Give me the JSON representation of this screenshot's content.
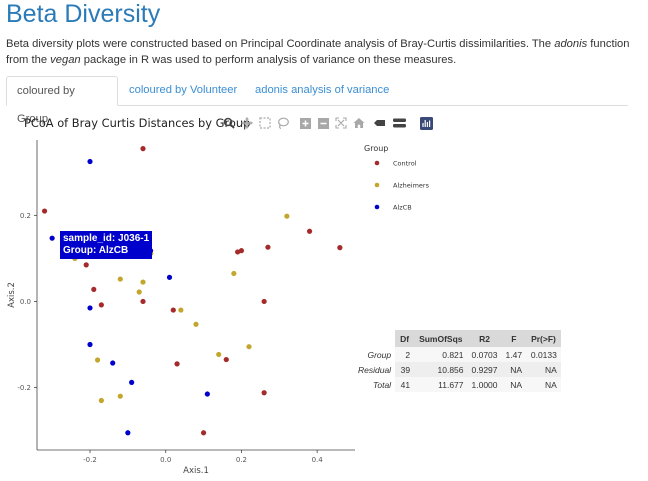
{
  "page": {
    "title": "Beta Diversity",
    "desc_parts": [
      "Beta diversity plots were constructed based on Principal Coordinate analysis of Bray-Curtis dissimilarities. The ",
      "adonis",
      " function from the ",
      "vegan",
      " package in R was used to perform analysis of variance on these measures."
    ]
  },
  "tabs": [
    {
      "label": "coloured by Group",
      "active": true
    },
    {
      "label": "coloured by Volunteer",
      "active": false
    },
    {
      "label": "adonis analysis of variance",
      "active": false
    }
  ],
  "plot": {
    "title": "PCoA of Bray Curtis Distances by Group",
    "modebar_icons": [
      "zoom-icon",
      "pan-icon",
      "box-select-icon",
      "lasso-select-icon",
      "zoom-in-icon",
      "zoom-out-icon",
      "autoscale-icon",
      "reset-axes-icon",
      "spike-lines-icon",
      "compare-hover-icon",
      "closest-hover-icon",
      "plotly-logo-icon"
    ],
    "tooltip": {
      "line1": "sample_id: J036-1",
      "line2": "Group: AlzCB"
    }
  },
  "chart_data": {
    "type": "scatter",
    "title": "PCoA of Bray Curtis Distances by Group",
    "xlabel": "Axis.1",
    "ylabel": "Axis.2",
    "xlim": [
      -0.34,
      0.5
    ],
    "ylim": [
      -0.345,
      0.375
    ],
    "xticks": [
      -0.2,
      0.0,
      0.2,
      0.4
    ],
    "yticks": [
      -0.2,
      0.0,
      0.2
    ],
    "xtick_labels": [
      "-0.2",
      "0.0",
      "0.2",
      "0.4"
    ],
    "ytick_labels": [
      "-0.2",
      "0.0",
      "0.2"
    ],
    "legend_title": "Group",
    "legend_position": "right",
    "grid": false,
    "series": [
      {
        "name": "Control",
        "color": "#a52a2a",
        "points": [
          [
            -0.06,
            0.355
          ],
          [
            -0.32,
            0.21
          ],
          [
            -0.21,
            0.085
          ],
          [
            -0.19,
            0.028
          ],
          [
            -0.17,
            -0.008
          ],
          [
            -0.06,
            0.0
          ],
          [
            -0.04,
            0.112
          ],
          [
            0.02,
            -0.02
          ],
          [
            0.03,
            -0.145
          ],
          [
            0.1,
            -0.305
          ],
          [
            0.16,
            -0.135
          ],
          [
            0.19,
            0.115
          ],
          [
            0.2,
            0.118
          ],
          [
            0.26,
            0.0
          ],
          [
            0.27,
            0.126
          ],
          [
            0.26,
            -0.212
          ],
          [
            0.38,
            0.163
          ],
          [
            0.46,
            0.125
          ]
        ]
      },
      {
        "name": "Alzheimers",
        "color": "#c3a62c",
        "points": [
          [
            -0.24,
            0.1
          ],
          [
            -0.12,
            0.052
          ],
          [
            -0.07,
            0.022
          ],
          [
            -0.06,
            0.045
          ],
          [
            -0.04,
            0.112
          ],
          [
            0.04,
            -0.02
          ],
          [
            0.08,
            -0.053
          ],
          [
            -0.18,
            -0.136
          ],
          [
            -0.17,
            -0.23
          ],
          [
            -0.12,
            -0.22
          ],
          [
            0.14,
            -0.123
          ],
          [
            0.18,
            0.065
          ],
          [
            0.22,
            -0.105
          ],
          [
            0.32,
            0.198
          ]
        ]
      },
      {
        "name": "AlzCB",
        "color": "#0000cc",
        "points": [
          [
            -0.2,
            0.325
          ],
          [
            -0.3,
            0.147
          ],
          [
            -0.2,
            -0.015
          ],
          [
            -0.2,
            -0.1
          ],
          [
            -0.14,
            -0.143
          ],
          [
            -0.09,
            -0.188
          ],
          [
            -0.1,
            -0.305
          ],
          [
            -0.04,
            0.118
          ],
          [
            0.01,
            0.056
          ],
          [
            0.11,
            -0.215
          ]
        ]
      }
    ]
  },
  "adonis_table": {
    "headers": [
      "Df",
      "SumOfSqs",
      "R2",
      "F",
      "Pr(>F)"
    ],
    "rows": [
      {
        "name": "Group",
        "values": [
          "2",
          "0.821",
          "0.0703",
          "1.47",
          "0.0133"
        ]
      },
      {
        "name": "Residual",
        "values": [
          "39",
          "10.856",
          "0.9297",
          "NA",
          "NA"
        ]
      },
      {
        "name": "Total",
        "values": [
          "41",
          "11.677",
          "1.0000",
          "NA",
          "NA"
        ]
      }
    ]
  }
}
